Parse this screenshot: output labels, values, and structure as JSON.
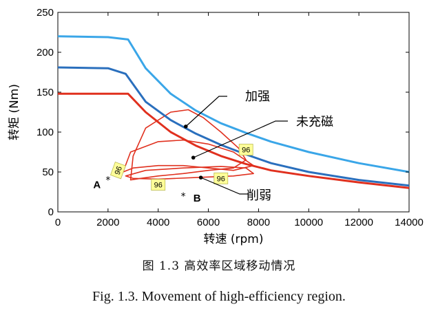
{
  "chart_data": {
    "type": "line",
    "xlabel": "转速 (rpm)",
    "ylabel": "转矩 (Nm)",
    "xlim": [
      0,
      14000
    ],
    "ylim": [
      0,
      250
    ],
    "xticks": [
      0,
      2000,
      4000,
      6000,
      8000,
      10000,
      12000,
      14000
    ],
    "yticks": [
      0,
      50,
      100,
      150,
      200,
      250
    ],
    "grid": false,
    "series": [
      {
        "name": "加强",
        "color": "#3aa6e8",
        "points": [
          [
            0,
            220
          ],
          [
            2000,
            219
          ],
          [
            2800,
            216
          ],
          [
            3500,
            180
          ],
          [
            4500,
            148
          ],
          [
            5500,
            127
          ],
          [
            6500,
            111
          ],
          [
            7500,
            99
          ],
          [
            8500,
            88
          ],
          [
            10000,
            75
          ],
          [
            12000,
            61
          ],
          [
            14000,
            50
          ]
        ]
      },
      {
        "name": "未充磁",
        "color": "#2a6fbd",
        "points": [
          [
            0,
            181
          ],
          [
            2000,
            180
          ],
          [
            2700,
            173
          ],
          [
            3500,
            138
          ],
          [
            4500,
            115
          ],
          [
            5500,
            98
          ],
          [
            6500,
            84
          ],
          [
            7500,
            72
          ],
          [
            8500,
            61
          ],
          [
            10000,
            50
          ],
          [
            12000,
            40
          ],
          [
            14000,
            33
          ]
        ]
      },
      {
        "name": "削弱",
        "color": "#e0301e",
        "points": [
          [
            0,
            148
          ],
          [
            2800,
            148
          ],
          [
            3500,
            125
          ],
          [
            4500,
            100
          ],
          [
            5500,
            83
          ],
          [
            6500,
            70
          ],
          [
            7500,
            60
          ],
          [
            8500,
            52
          ],
          [
            10000,
            45
          ],
          [
            12000,
            37
          ],
          [
            14000,
            30
          ]
        ]
      }
    ],
    "efficiency_contours": [
      {
        "series": "加强",
        "color": "#e0301e",
        "points": [
          [
            2900,
            40
          ],
          [
            3000,
            70
          ],
          [
            3500,
            105
          ],
          [
            4500,
            125
          ],
          [
            5200,
            128
          ],
          [
            5800,
            118
          ],
          [
            6500,
            100
          ],
          [
            7200,
            80
          ],
          [
            7500,
            65
          ],
          [
            7000,
            55
          ],
          [
            6000,
            52
          ],
          [
            5000,
            48
          ],
          [
            4000,
            45
          ],
          [
            3300,
            42
          ],
          [
            2900,
            40
          ]
        ]
      },
      {
        "series": "未充磁",
        "color": "#e0301e",
        "points": [
          [
            2600,
            50
          ],
          [
            2900,
            75
          ],
          [
            4000,
            88
          ],
          [
            5000,
            90
          ],
          [
            6000,
            85
          ],
          [
            7000,
            75
          ],
          [
            7800,
            58
          ],
          [
            7000,
            52
          ],
          [
            6000,
            55
          ],
          [
            5000,
            58
          ],
          [
            4000,
            58
          ],
          [
            3000,
            55
          ],
          [
            2600,
            50
          ]
        ]
      },
      {
        "series": "削弱",
        "color": "#e0301e",
        "points": [
          [
            2700,
            45
          ],
          [
            3500,
            52
          ],
          [
            5000,
            55
          ],
          [
            6500,
            57
          ],
          [
            7500,
            55
          ],
          [
            7800,
            48
          ],
          [
            7000,
            45
          ],
          [
            5500,
            43
          ],
          [
            4000,
            41
          ],
          [
            3000,
            42
          ],
          [
            2700,
            45
          ]
        ]
      }
    ],
    "contour_labels": [
      {
        "text": "96",
        "x": 2400,
        "y": 52,
        "rotation": -70
      },
      {
        "text": "96",
        "x": 4000,
        "y": 34,
        "rotation": 0
      },
      {
        "text": "96",
        "x": 6500,
        "y": 42,
        "rotation": 0
      },
      {
        "text": "96",
        "x": 7500,
        "y": 78,
        "rotation": 0
      }
    ],
    "markers": [
      {
        "label": "A",
        "x": 2000,
        "y": 40
      },
      {
        "label": "B",
        "x": 5000,
        "y": 20
      }
    ],
    "annotations": [
      {
        "text": "加强",
        "target_x": 5100,
        "target_y": 107
      },
      {
        "text": "未充磁",
        "target_x": 5400,
        "target_y": 68
      },
      {
        "text": "削弱",
        "target_x": 5700,
        "target_y": 43
      }
    ]
  },
  "caption_cn": "图 1.3  高效率区域移动情况",
  "caption_en": "Fig. 1.3.    Movement of high-efficiency region."
}
